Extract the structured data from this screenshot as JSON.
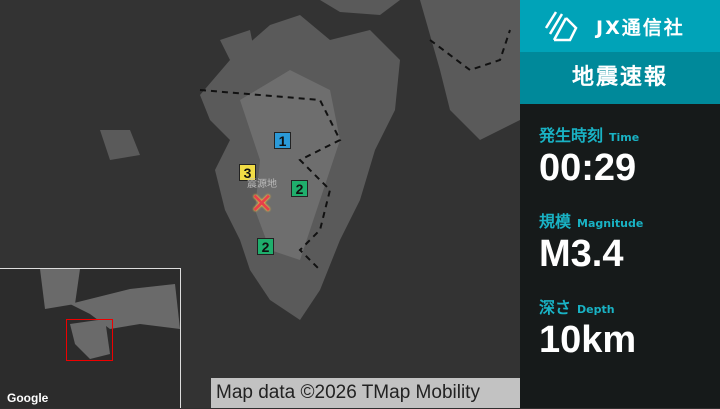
{
  "map": {
    "markers": [
      {
        "label": "1",
        "color": "#2b9ad8"
      },
      {
        "label": "2",
        "color": "#1fae6c"
      },
      {
        "label": "2",
        "color": "#1fae6c"
      },
      {
        "label": "3",
        "color": "#f1dc45"
      }
    ],
    "epicenter_label": "震源地",
    "google_logo": "Google",
    "attribution": "Map data ©2026 TMap Mobility"
  },
  "sidebar": {
    "brand": "JX通信社",
    "title": "地震速報",
    "time": {
      "label": "発生時刻",
      "sub": "Time",
      "value": "00:29"
    },
    "magnitude": {
      "label": "規模",
      "sub": "Magnitude",
      "value": "M3.4"
    },
    "depth": {
      "label": "深さ",
      "sub": "Depth",
      "value": "10km"
    }
  },
  "colors": {
    "brand": "#00a3b8",
    "title_band": "#00899a",
    "label": "#19b2c4"
  }
}
